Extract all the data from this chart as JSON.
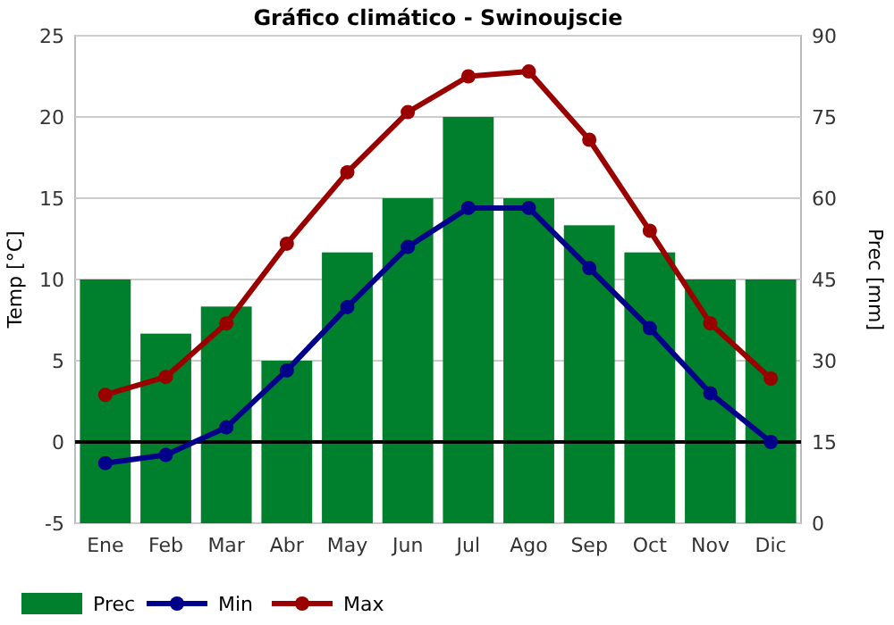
{
  "chart_data": {
    "type": "bar",
    "title": "Gráfico climático - Swinoujscie",
    "ylabel": "Temp [°C]",
    "y2label": "Prec [mm]",
    "categories": [
      "Ene",
      "Feb",
      "Mar",
      "Abr",
      "May",
      "Jun",
      "Jul",
      "Ago",
      "Sep",
      "Oct",
      "Nov",
      "Dic"
    ],
    "series": [
      {
        "name": "Prec",
        "axis": "y2",
        "color": "#007f2d",
        "values": [
          45,
          35,
          40,
          30,
          50,
          60,
          75,
          60,
          55,
          50,
          45,
          45
        ]
      },
      {
        "name": "Min",
        "type": "line",
        "color": "#00008b",
        "values": [
          -1.3,
          -0.8,
          0.9,
          4.4,
          8.3,
          12.0,
          14.4,
          14.4,
          10.7,
          7.0,
          3.0,
          0.0
        ]
      },
      {
        "name": "Max",
        "type": "line",
        "color": "#9b0000",
        "values": [
          2.9,
          4.0,
          7.3,
          12.2,
          16.6,
          20.3,
          22.5,
          22.8,
          18.6,
          13.0,
          7.3,
          3.9
        ]
      }
    ],
    "ylim": [
      -5,
      25
    ],
    "yticks": [
      -5,
      0,
      5,
      10,
      15,
      20,
      25
    ],
    "y2lim": [
      0,
      90
    ],
    "y2ticks": [
      0,
      15,
      30,
      45,
      60,
      75,
      90
    ],
    "grid": "y",
    "legend": "bottom",
    "marker": "circle",
    "ref_lines": [
      {
        "axis": "y",
        "value": 0,
        "color": "#000000"
      }
    ]
  }
}
